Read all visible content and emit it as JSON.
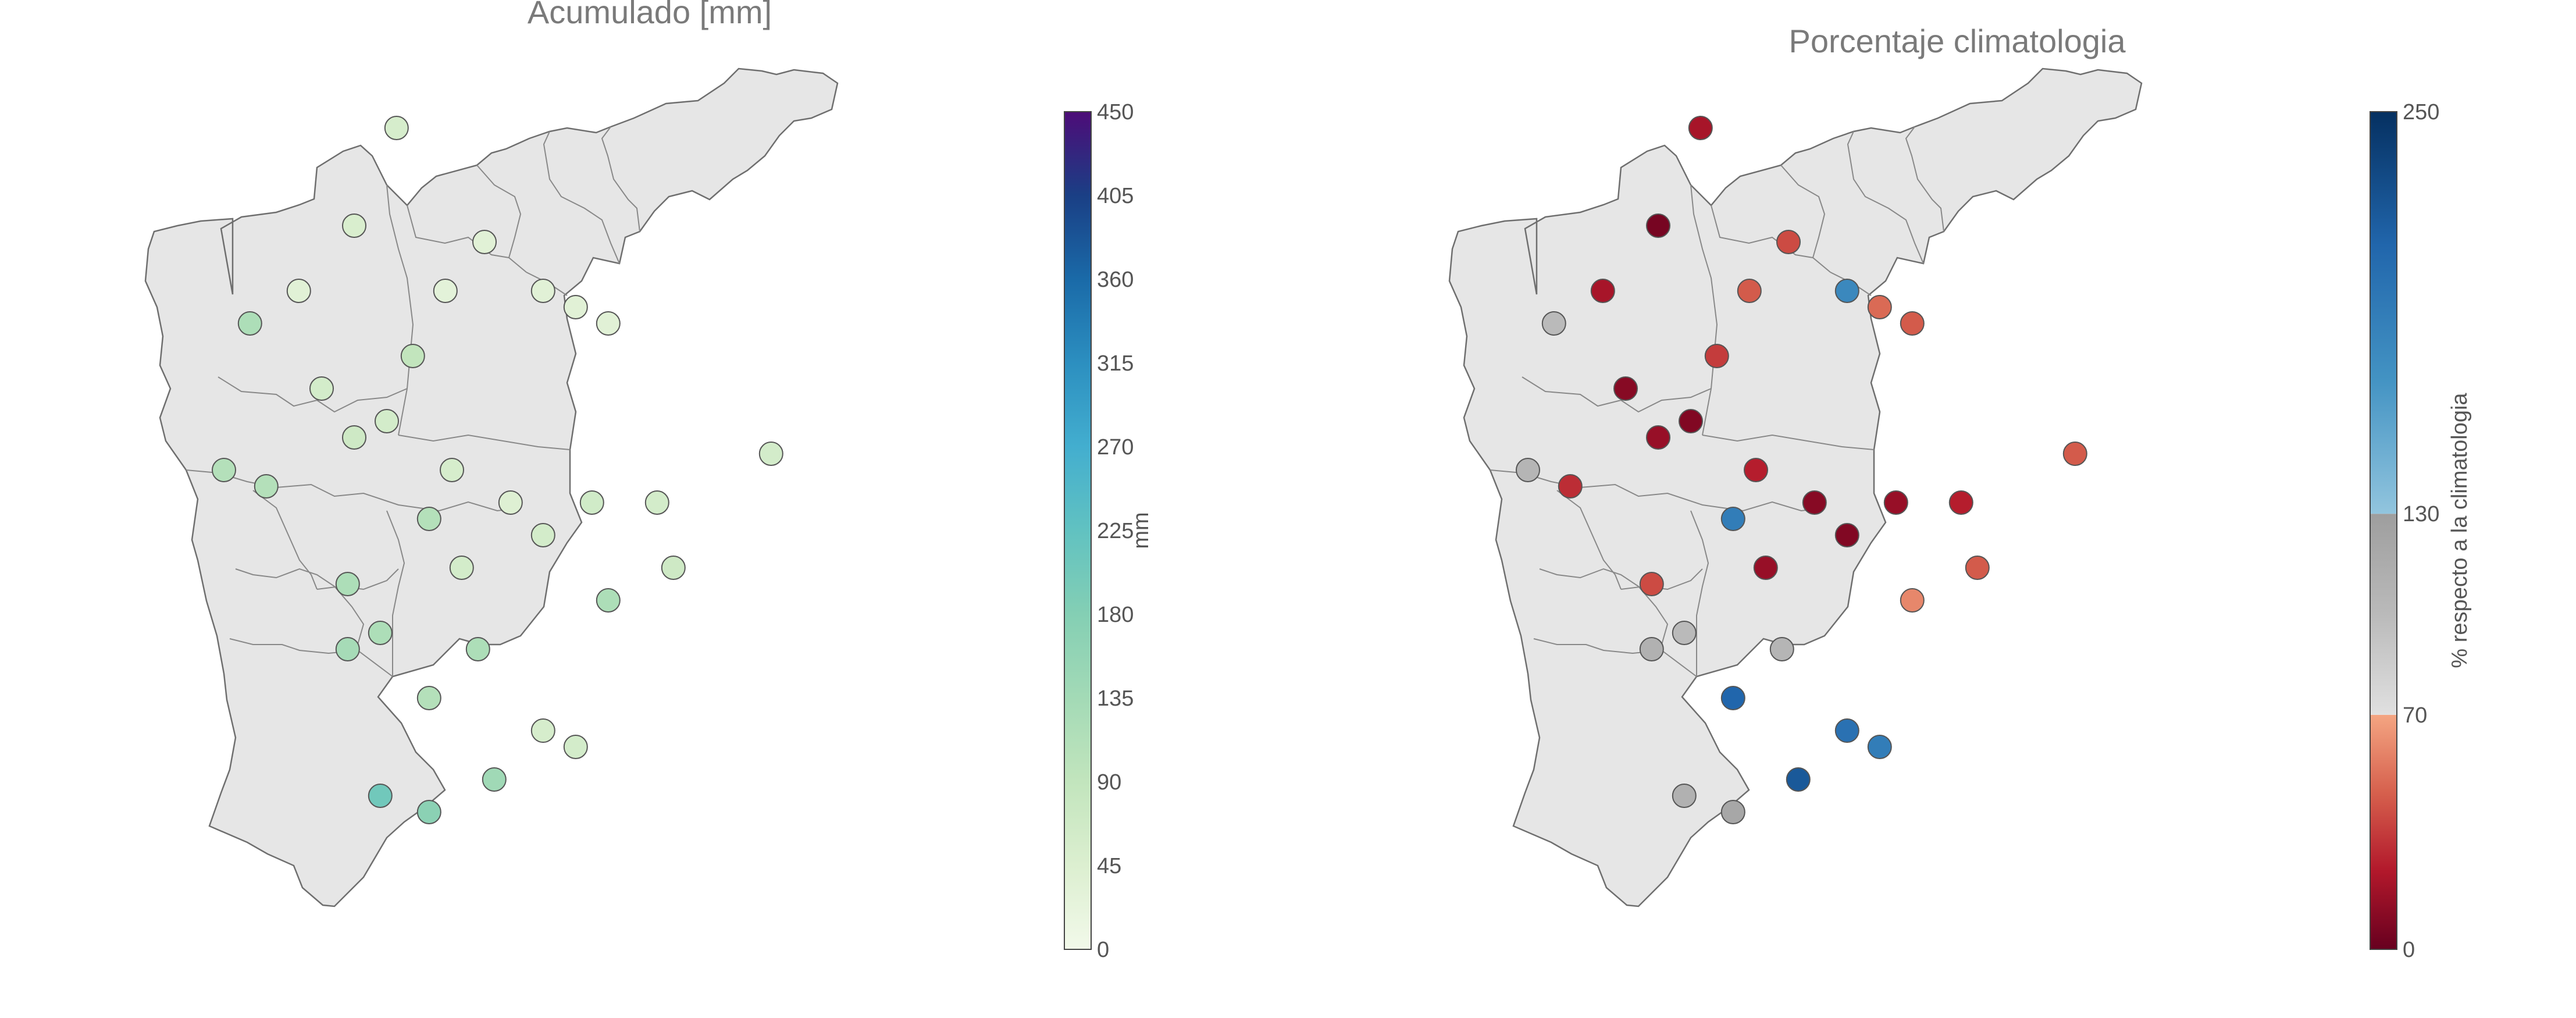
{
  "panels": [
    {
      "title": "Acumulado [mm]",
      "colorbar": {
        "label": "mm",
        "ticks": [
          "0",
          "45",
          "90",
          "135",
          "180",
          "225",
          "270",
          "315",
          "360",
          "405",
          "450"
        ],
        "colors": [
          "#f2f9ea",
          "#dcefd0",
          "#c2e5bd",
          "#a3dab6",
          "#84cfb4",
          "#61c2c1",
          "#43aecf",
          "#2c8fc0",
          "#1a6aa8",
          "#1a3f85",
          "#4d0c78"
        ]
      },
      "stations": [
        {
          "lon": -74.55,
          "lat": 7.85,
          "v": 55
        },
        {
          "lon": -74.28,
          "lat": 7.5,
          "v": 35
        },
        {
          "lon": -74.4,
          "lat": 7.35,
          "v": 30
        },
        {
          "lon": -74.1,
          "lat": 7.35,
          "v": 35
        },
        {
          "lon": -74.0,
          "lat": 7.3,
          "v": 35
        },
        {
          "lon": -73.9,
          "lat": 7.25,
          "v": 35
        },
        {
          "lon": -74.5,
          "lat": 7.15,
          "v": 90
        },
        {
          "lon": -74.68,
          "lat": 7.55,
          "v": 50
        },
        {
          "lon": -74.78,
          "lat": 7.05,
          "v": 60
        },
        {
          "lon": -75.0,
          "lat": 7.25,
          "v": 120
        },
        {
          "lon": -75.08,
          "lat": 6.8,
          "v": 110
        },
        {
          "lon": -74.95,
          "lat": 6.75,
          "v": 110
        },
        {
          "lon": -74.68,
          "lat": 6.9,
          "v": 70
        },
        {
          "lon": -74.58,
          "lat": 6.95,
          "v": 60
        },
        {
          "lon": -74.45,
          "lat": 6.65,
          "v": 110
        },
        {
          "lon": -74.38,
          "lat": 6.8,
          "v": 55
        },
        {
          "lon": -74.35,
          "lat": 6.5,
          "v": 60
        },
        {
          "lon": -74.2,
          "lat": 6.7,
          "v": 40
        },
        {
          "lon": -74.1,
          "lat": 6.6,
          "v": 60
        },
        {
          "lon": -73.95,
          "lat": 6.7,
          "v": 65
        },
        {
          "lon": -73.75,
          "lat": 6.7,
          "v": 60
        },
        {
          "lon": -73.7,
          "lat": 6.5,
          "v": 70
        },
        {
          "lon": -73.4,
          "lat": 6.85,
          "v": 60
        },
        {
          "lon": -74.7,
          "lat": 6.45,
          "v": 120
        },
        {
          "lon": -74.7,
          "lat": 6.25,
          "v": 130
        },
        {
          "lon": -74.6,
          "lat": 6.3,
          "v": 120
        },
        {
          "lon": -74.3,
          "lat": 6.25,
          "v": 120
        },
        {
          "lon": -74.45,
          "lat": 6.1,
          "v": 110
        },
        {
          "lon": -73.9,
          "lat": 6.4,
          "v": 120
        },
        {
          "lon": -74.1,
          "lat": 6.0,
          "v": 55
        },
        {
          "lon": -74.0,
          "lat": 5.95,
          "v": 60
        },
        {
          "lon": -74.45,
          "lat": 5.75,
          "v": 170
        },
        {
          "lon": -74.6,
          "lat": 5.8,
          "v": 205
        },
        {
          "lon": -74.25,
          "lat": 5.85,
          "v": 140
        },
        {
          "lon": -74.85,
          "lat": 7.35,
          "v": 35
        }
      ]
    },
    {
      "title": "Porcentaje climatologia",
      "colorbar": {
        "label": "% respecto a la climatologia",
        "ticks": [
          "0",
          "70",
          "130",
          "250"
        ],
        "lowColors": [
          "#67001f",
          "#b2182b",
          "#d6604d",
          "#f4a582"
        ],
        "midColors": [
          "#e0e0e0",
          "#bababa",
          "#9e9e9e"
        ],
        "highColors": [
          "#92c5de",
          "#4393c3",
          "#2166ac",
          "#053061"
        ]
      },
      "stations": [
        {
          "lon": -74.55,
          "lat": 7.85,
          "v": 20
        },
        {
          "lon": -74.28,
          "lat": 7.5,
          "v": 40
        },
        {
          "lon": -74.4,
          "lat": 7.35,
          "v": 45
        },
        {
          "lon": -74.1,
          "lat": 7.35,
          "v": 180
        },
        {
          "lon": -74.0,
          "lat": 7.3,
          "v": 50
        },
        {
          "lon": -73.9,
          "lat": 7.25,
          "v": 45
        },
        {
          "lon": -74.5,
          "lat": 7.15,
          "v": 35
        },
        {
          "lon": -74.68,
          "lat": 7.55,
          "v": 5
        },
        {
          "lon": -74.78,
          "lat": 7.05,
          "v": 10
        },
        {
          "lon": -75.0,
          "lat": 7.25,
          "v": 100
        },
        {
          "lon": -75.08,
          "lat": 6.8,
          "v": 105
        },
        {
          "lon": -74.95,
          "lat": 6.75,
          "v": 30
        },
        {
          "lon": -74.68,
          "lat": 6.9,
          "v": 15
        },
        {
          "lon": -74.58,
          "lat": 6.95,
          "v": 8
        },
        {
          "lon": -74.45,
          "lat": 6.65,
          "v": 190
        },
        {
          "lon": -74.38,
          "lat": 6.8,
          "v": 25
        },
        {
          "lon": -74.35,
          "lat": 6.5,
          "v": 15
        },
        {
          "lon": -74.2,
          "lat": 6.7,
          "v": 10
        },
        {
          "lon": -74.1,
          "lat": 6.6,
          "v": 8
        },
        {
          "lon": -73.95,
          "lat": 6.7,
          "v": 15
        },
        {
          "lon": -73.75,
          "lat": 6.7,
          "v": 25
        },
        {
          "lon": -73.7,
          "lat": 6.5,
          "v": 45
        },
        {
          "lon": -73.4,
          "lat": 6.85,
          "v": 45
        },
        {
          "lon": -74.7,
          "lat": 6.45,
          "v": 40
        },
        {
          "lon": -74.7,
          "lat": 6.25,
          "v": 110
        },
        {
          "lon": -74.6,
          "lat": 6.3,
          "v": 100
        },
        {
          "lon": -74.3,
          "lat": 6.25,
          "v": 105
        },
        {
          "lon": -74.45,
          "lat": 6.1,
          "v": 210
        },
        {
          "lon": -73.9,
          "lat": 6.4,
          "v": 60
        },
        {
          "lon": -74.1,
          "lat": 6.0,
          "v": 200
        },
        {
          "lon": -74.0,
          "lat": 5.95,
          "v": 190
        },
        {
          "lon": -74.45,
          "lat": 5.75,
          "v": 120
        },
        {
          "lon": -74.6,
          "lat": 5.8,
          "v": 110
        },
        {
          "lon": -74.25,
          "lat": 5.85,
          "v": 220
        },
        {
          "lon": -74.85,
          "lat": 7.35,
          "v": 20
        }
      ]
    }
  ]
}
